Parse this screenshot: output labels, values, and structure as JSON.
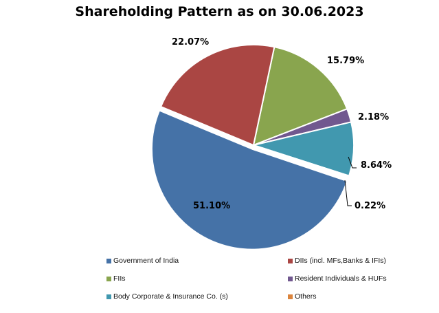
{
  "title": "Shareholding Pattern as on 30.06.2023",
  "chart_data": {
    "type": "pie",
    "title": "Shareholding Pattern as on 30.06.2023",
    "categories": [
      "Government of India",
      "DIIs (incl. MFs,Banks & IFIs)",
      "FIIs",
      "Resident Individuals &  HUFs",
      "Body Corporate & Insurance Co. (s)",
      "Others"
    ],
    "values": [
      51.1,
      22.07,
      15.79,
      2.18,
      8.64,
      0.22
    ],
    "labels": [
      "51.10%",
      "22.07%",
      "15.79%",
      "2.18%",
      "8.64%",
      "0.22%"
    ],
    "colors": [
      "#4572A7",
      "#AA4643",
      "#89A54E",
      "#71588F",
      "#4198AF",
      "#DB843D"
    ],
    "legend_position": "bottom",
    "exploded": "Government of India"
  },
  "labels": {
    "govt": "51.10%",
    "diis": "22.07%",
    "fiis": "15.79%",
    "resident": "2.18%",
    "body": "8.64%",
    "others": "0.22%"
  },
  "legend": [
    {
      "label": "Government of India",
      "color": "#4572A7"
    },
    {
      "label": "DIIs (incl. MFs,Banks & IFIs)",
      "color": "#AA4643"
    },
    {
      "label": "FIIs",
      "color": "#89A54E"
    },
    {
      "label": "Resident Individuals &  HUFs",
      "color": "#71588F"
    },
    {
      "label": "Body Corporate & Insurance Co. (s)",
      "color": "#4198AF"
    },
    {
      "label": "Others",
      "color": "#DB843D"
    }
  ]
}
